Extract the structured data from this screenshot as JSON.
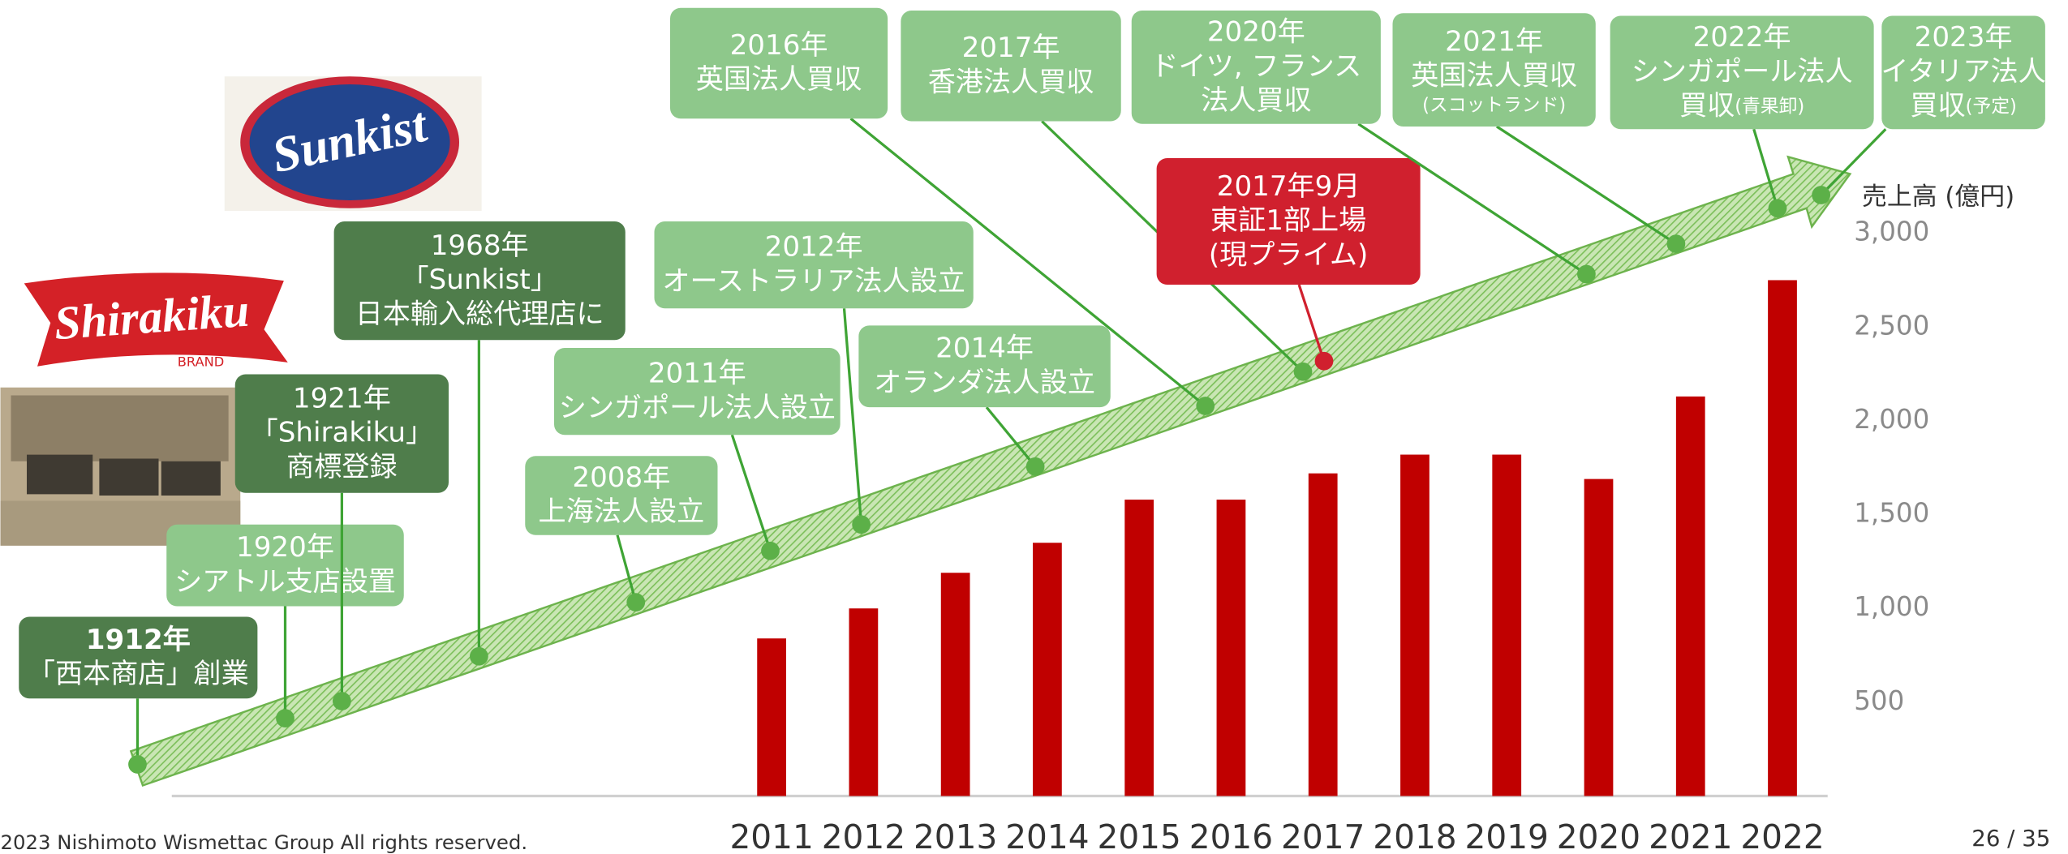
{
  "chart_data": {
    "type": "bar",
    "y_axis_label": "売上高 (億円)",
    "categories": [
      "2011",
      "2012",
      "2013",
      "2014",
      "2015",
      "2016",
      "2017",
      "2018",
      "2019",
      "2020",
      "2021",
      "2022"
    ],
    "values": [
      840,
      1000,
      1190,
      1350,
      1580,
      1580,
      1720,
      1820,
      1820,
      1690,
      2130,
      2750
    ],
    "color": "#c00000",
    "ylim": [
      0,
      3000
    ],
    "yticks": [
      500,
      {
        "value": 1000,
        "label": "1,000"
      },
      {
        "value": 1500,
        "label": "1,500"
      },
      {
        "value": 2000,
        "label": "2,000"
      },
      {
        "value": 2500,
        "label": "2,500"
      },
      {
        "value": 3000,
        "label": "3,000"
      }
    ],
    "grid": false
  },
  "timeline": {
    "events": [
      {
        "lines": [
          "1912年",
          "「西本商店」創業"
        ],
        "color": "#4f7d4b"
      },
      {
        "lines": [
          "1920年",
          "シアトル支店設置"
        ],
        "color": "#8ec88b"
      },
      {
        "lines": [
          "1921年",
          "「Shirakiku」",
          "商標登録"
        ],
        "color": "#4f7d4b"
      },
      {
        "lines": [
          "1968年",
          "「Sunkist」",
          "日本輸入総代理店に"
        ],
        "color": "#4f7d4b"
      },
      {
        "lines": [
          "2008年",
          "上海法人設立"
        ],
        "color": "#8ec88b"
      },
      {
        "lines": [
          "2011年",
          "シンガポール法人設立"
        ],
        "color": "#8ec88b"
      },
      {
        "lines": [
          "2012年",
          "オーストラリア法人設立"
        ],
        "color": "#8ec88b"
      },
      {
        "lines": [
          "2014年",
          "オランダ法人設立"
        ],
        "color": "#8ec88b"
      },
      {
        "lines": [
          "2016年",
          "英国法人買収"
        ],
        "color": "#8ec88b"
      },
      {
        "lines": [
          "2017年",
          "香港法人買収"
        ],
        "color": "#8ec88b"
      },
      {
        "lines": [
          "2017年9月",
          "東証1部上場",
          "(現プライム)"
        ],
        "color": "#d0202e"
      },
      {
        "lines": [
          "2020年",
          "ドイツ, フランス",
          "法人買収"
        ],
        "color": "#8ec88b"
      },
      {
        "lines": [
          "2021年",
          "英国法人買収"
        ],
        "note": "(スコットランド)",
        "color": "#8ec88b"
      },
      {
        "lines": [
          "2022年",
          "シンガポール法人",
          "買収"
        ],
        "note": "(青果卸)",
        "color": "#8ec88b"
      },
      {
        "lines": [
          "2023年",
          "イタリア法人",
          "買収"
        ],
        "note": "(予定)",
        "color": "#8ec88b"
      }
    ]
  },
  "logos": {
    "sunkist": "Sunkist",
    "shirakiku": "Shirakiku",
    "brand": "BRAND"
  },
  "footer": {
    "copyright": "2023 Nishimoto Wismettac Group All rights reserved.",
    "page": "26 / 35"
  }
}
